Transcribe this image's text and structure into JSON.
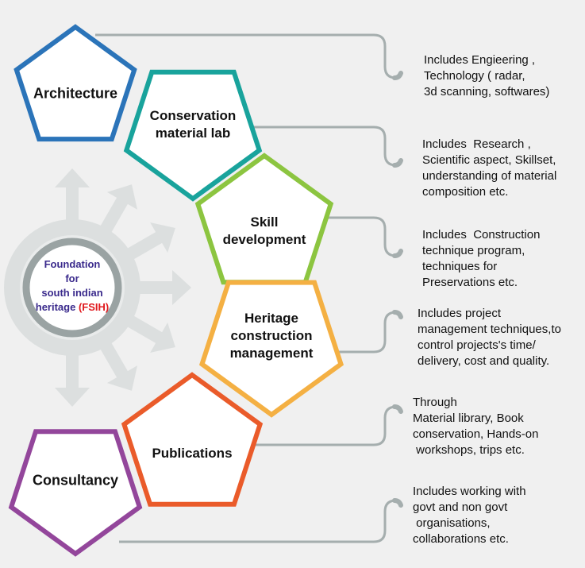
{
  "hub": {
    "lines": [
      "Foundation",
      "for",
      "south indian",
      "heritage"
    ],
    "acronym": "(FSIH)",
    "text_color": "#3a2a8c",
    "acronym_color": "#e0191e"
  },
  "pentagons": [
    {
      "id": "architecture",
      "lines": [
        "Architecture"
      ],
      "color": "#2b74b9"
    },
    {
      "id": "conservation-material-lab",
      "lines": [
        "Conservation",
        "material lab"
      ],
      "color": "#19a39c"
    },
    {
      "id": "skill-development",
      "lines": [
        "Skill",
        "development"
      ],
      "color": "#8cc540"
    },
    {
      "id": "heritage-construction-management",
      "lines": [
        "Heritage",
        "construction",
        "management"
      ],
      "color": "#f4b043"
    },
    {
      "id": "publications",
      "lines": [
        "Publications"
      ],
      "color": "#ea5b2a"
    },
    {
      "id": "consultancy",
      "lines": [
        "Consultancy"
      ],
      "color": "#93469b"
    }
  ],
  "descriptions": [
    {
      "id": "architecture",
      "text": "Includes Engieering ,\nTechnology ( radar,\n3d scanning, softwares)"
    },
    {
      "id": "conservation-material-lab",
      "text": "Includes  Research ,\nScientific aspect, Skillset,\nunderstanding of material\ncomposition etc."
    },
    {
      "id": "skill-development",
      "text": "Includes  Construction\ntechnique program,\ntechniques for\nPreservations etc."
    },
    {
      "id": "heritage-construction-management",
      "text": "Includes project\nmanagement techniques,to\ncontrol projects's time/\ndelivery, cost and quality."
    },
    {
      "id": "publications",
      "text": "Through\nMaterial library, Book\nconservation, Hands-on\n workshops, trips etc."
    },
    {
      "id": "consultancy",
      "text": "Includes working with\ngovt and non govt\n organisations,\ncollaborations etc."
    }
  ],
  "colors": {
    "connector": "#a5aeae",
    "gear": "#dcdfdf",
    "hub_ring": "#9aa3a3"
  }
}
